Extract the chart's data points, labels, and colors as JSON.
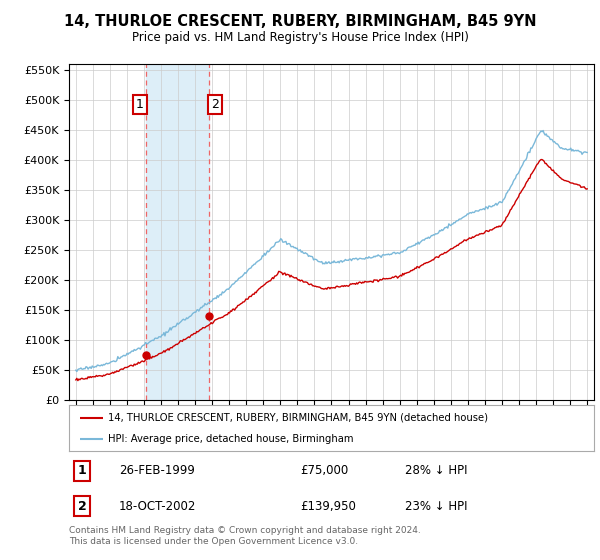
{
  "title": "14, THURLOE CRESCENT, RUBERY, BIRMINGHAM, B45 9YN",
  "subtitle": "Price paid vs. HM Land Registry's House Price Index (HPI)",
  "legend_line1": "14, THURLOE CRESCENT, RUBERY, BIRMINGHAM, B45 9YN (detached house)",
  "legend_line2": "HPI: Average price, detached house, Birmingham",
  "footer": "Contains HM Land Registry data © Crown copyright and database right 2024.\nThis data is licensed under the Open Government Licence v3.0.",
  "transactions": [
    {
      "label": "1",
      "date_decimal": 1999.146,
      "price": 75000,
      "note": "28% ↓ HPI"
    },
    {
      "label": "2",
      "date_decimal": 2002.794,
      "price": 139950,
      "note": "23% ↓ HPI"
    }
  ],
  "hpi_color": "#7ab8d9",
  "price_color": "#cc0000",
  "shading_color": "#ddeef8",
  "dashed_color": "#ee6666",
  "ylim": [
    0,
    560000
  ],
  "yticks": [
    0,
    50000,
    100000,
    150000,
    200000,
    250000,
    300000,
    350000,
    400000,
    450000,
    500000,
    550000
  ],
  "background_color": "#ffffff",
  "grid_color": "#cccccc",
  "xlim_min": 1994.6,
  "xlim_max": 2025.4
}
